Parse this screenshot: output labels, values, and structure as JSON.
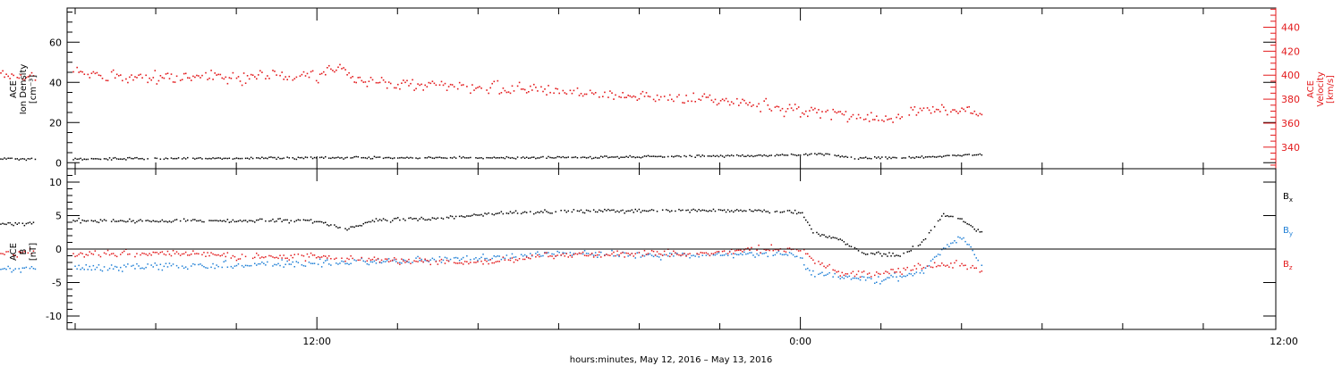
{
  "colors": {
    "black": "#000000",
    "red": "#e31a1c",
    "blue": "#1f7fd6"
  },
  "chart_data": [
    {
      "type": "scatter",
      "panel": "top",
      "ylabel_lines": [
        "ACE",
        "Ion Density",
        "[cm⁻³]"
      ],
      "ylim": [
        -3,
        77
      ],
      "yticks": [
        0,
        20,
        40,
        60
      ],
      "ytick_labels": [
        "0",
        "20",
        "40",
        "60"
      ],
      "right_axis": {
        "label_lines": [
          "ACE",
          "Velocity",
          "[km/s]"
        ],
        "ylim": [
          322,
          456
        ],
        "ticks": [
          340,
          360,
          380,
          400,
          420,
          440
        ],
        "tick_labels": [
          "340",
          "360",
          "380",
          "400",
          "420",
          "440"
        ]
      },
      "series": [
        {
          "color": "black",
          "axis": "left",
          "gaps": [
            [
              5.0,
              5.9
            ]
          ],
          "points": [
            [
              0.0,
              3.2
            ],
            [
              1.5,
              2.3
            ],
            [
              3.0,
              2.4
            ],
            [
              5.0,
              2.2
            ],
            [
              6.0,
              2.2
            ],
            [
              9.0,
              2.5
            ],
            [
              13.0,
              2.8
            ],
            [
              17.0,
              2.8
            ],
            [
              19.0,
              3.0
            ],
            [
              21.0,
              3.5
            ],
            [
              23.0,
              3.8
            ],
            [
              24.7,
              4.5
            ],
            [
              25.3,
              2.5
            ],
            [
              27.0,
              3.0
            ],
            [
              28.5,
              4.5
            ]
          ]
        },
        {
          "color": "red",
          "axis": "right",
          "gaps": [
            [
              5.0,
              5.9
            ]
          ],
          "points": [
            [
              0.0,
              410
            ],
            [
              1.0,
              412
            ],
            [
              2.0,
              405
            ],
            [
              3.0,
              403
            ],
            [
              4.0,
              402
            ],
            [
              5.0,
              400
            ],
            [
              6.0,
              403
            ],
            [
              7.0,
              400
            ],
            [
              8.0,
              398
            ],
            [
              9.0,
              400
            ],
            [
              10.0,
              398
            ],
            [
              11.0,
              400
            ],
            [
              12.0,
              399
            ],
            [
              12.5,
              410
            ],
            [
              13.0,
              396
            ],
            [
              14.0,
              393
            ],
            [
              15.0,
              392
            ],
            [
              16.0,
              390
            ],
            [
              17.0,
              389
            ],
            [
              18.0,
              387
            ],
            [
              19.0,
              385
            ],
            [
              20.0,
              383
            ],
            [
              21.0,
              382
            ],
            [
              22.0,
              380
            ],
            [
              23.0,
              376
            ],
            [
              24.0,
              370
            ],
            [
              25.0,
              368
            ],
            [
              26.0,
              363
            ],
            [
              27.0,
              372
            ],
            [
              28.0,
              372
            ],
            [
              28.5,
              368
            ]
          ]
        }
      ]
    },
    {
      "type": "scatter",
      "panel": "bottom",
      "ylabel_lines": [
        "ACE",
        "B",
        "[nT]"
      ],
      "ylim": [
        -12,
        12
      ],
      "yticks": [
        -10,
        -5,
        0,
        5,
        10
      ],
      "ytick_labels": [
        "-10",
        "-5",
        "0",
        "5",
        "10"
      ],
      "zero_line": true,
      "legend": [
        {
          "label": "B",
          "sub": "x",
          "color": "black"
        },
        {
          "label": "B",
          "sub": "y",
          "color": "blue"
        },
        {
          "label": "B",
          "sub": "z",
          "color": "red"
        }
      ],
      "series": [
        {
          "color": "black",
          "name": "Bx",
          "gaps": [
            [
              5.0,
              5.9
            ]
          ],
          "points": [
            [
              0.0,
              3.5
            ],
            [
              1.5,
              3.0
            ],
            [
              2.2,
              1.5
            ],
            [
              3.0,
              3.5
            ],
            [
              5.0,
              4.0
            ],
            [
              6.0,
              4.3
            ],
            [
              9.0,
              4.3
            ],
            [
              12.0,
              4.3
            ],
            [
              12.7,
              3.0
            ],
            [
              13.5,
              4.5
            ],
            [
              15.0,
              4.6
            ],
            [
              16.5,
              5.5
            ],
            [
              19.0,
              5.8
            ],
            [
              21.0,
              5.9
            ],
            [
              23.0,
              5.8
            ],
            [
              24.0,
              5.6
            ],
            [
              24.3,
              2.5
            ],
            [
              25.0,
              1.5
            ],
            [
              25.5,
              -0.5
            ],
            [
              26.5,
              -0.8
            ],
            [
              27.0,
              1.0
            ],
            [
              27.5,
              5.0
            ],
            [
              28.0,
              4.5
            ],
            [
              28.5,
              2.5
            ]
          ]
        },
        {
          "color": "blue",
          "name": "By",
          "gaps": [
            [
              5.0,
              5.9
            ]
          ],
          "points": [
            [
              0.0,
              -2.5
            ],
            [
              1.5,
              -3.0
            ],
            [
              2.2,
              -4.0
            ],
            [
              3.0,
              -3.0
            ],
            [
              5.0,
              -2.8
            ],
            [
              6.0,
              -2.8
            ],
            [
              8.0,
              -2.5
            ],
            [
              10.0,
              -2.3
            ],
            [
              12.0,
              -2.0
            ],
            [
              14.0,
              -1.8
            ],
            [
              16.0,
              -1.2
            ],
            [
              18.0,
              -0.6
            ],
            [
              20.0,
              -0.8
            ],
            [
              22.0,
              -0.8
            ],
            [
              23.5,
              -0.5
            ],
            [
              24.0,
              -1.0
            ],
            [
              24.2,
              -3.5
            ],
            [
              25.0,
              -4.0
            ],
            [
              26.0,
              -4.5
            ],
            [
              27.0,
              -3.5
            ],
            [
              27.5,
              0.0
            ],
            [
              28.0,
              2.0
            ],
            [
              28.5,
              -2.5
            ]
          ]
        },
        {
          "color": "red",
          "name": "Bz",
          "gaps": [
            [
              5.0,
              5.9
            ]
          ],
          "points": [
            [
              0.0,
              0.0
            ],
            [
              1.0,
              -1.5
            ],
            [
              2.0,
              -0.8
            ],
            [
              3.0,
              -1.5
            ],
            [
              4.0,
              -0.5
            ],
            [
              5.0,
              -0.5
            ],
            [
              6.0,
              -0.8
            ],
            [
              8.0,
              -0.5
            ],
            [
              10.0,
              -1.0
            ],
            [
              12.0,
              -1.0
            ],
            [
              13.5,
              -1.5
            ],
            [
              15.0,
              -1.8
            ],
            [
              16.0,
              -1.8
            ],
            [
              17.0,
              -1.4
            ],
            [
              18.0,
              -0.8
            ],
            [
              20.0,
              -0.6
            ],
            [
              22.0,
              -0.5
            ],
            [
              23.0,
              0.2
            ],
            [
              24.0,
              0.0
            ],
            [
              24.3,
              -1.5
            ],
            [
              25.0,
              -3.5
            ],
            [
              26.0,
              -3.5
            ],
            [
              27.0,
              -2.5
            ],
            [
              28.0,
              -2.0
            ],
            [
              28.5,
              -3.5
            ]
          ]
        }
      ]
    }
  ],
  "x_axis": {
    "title": "hours:minutes, May 12, 2016 – May 13, 2016",
    "range_hours": [
      5.8,
      35.8
    ],
    "major_ticks": [
      12,
      24,
      36
    ],
    "major_labels": [
      "12:00",
      "0:00",
      "12:00"
    ],
    "minor_step_hours": 2
  }
}
